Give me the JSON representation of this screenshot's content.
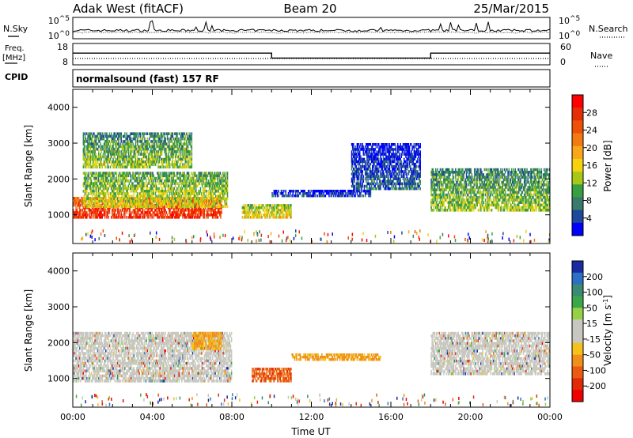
{
  "header": {
    "station": "Adak West (fitACF)",
    "beam": "Beam 20",
    "date": "25/Mar/2015"
  },
  "labels": {
    "nsky": "N.Sky",
    "nsearch": "N.Search",
    "freq_line1": "Freq.",
    "freq_line2": "[MHz]",
    "nave": "Nave",
    "cpid": "CPID",
    "program": "normalsound (fast) 157 RF"
  },
  "noise_axis": {
    "top_label": "10^5",
    "bottom_label": "10^0",
    "right_top": "10^5",
    "right_bottom": "10^0"
  },
  "freq_axis": {
    "left_ticks": [
      "18",
      "8"
    ],
    "right_ticks": [
      "60",
      "0"
    ]
  },
  "chart_data": [
    {
      "type": "line",
      "panel": "noise",
      "series": [
        {
          "name": "N.Sky",
          "style": "solid"
        },
        {
          "name": "N.Search",
          "style": "dotted"
        }
      ]
    },
    {
      "type": "line",
      "panel": "frequency",
      "x": [
        "00:00",
        "10:00",
        "10:00",
        "18:00",
        "18:00",
        "24:00"
      ],
      "series": [
        {
          "name": "Freq.",
          "style": "solid",
          "values": [
            13.5,
            13.5,
            11.2,
            11.2,
            13.5,
            13.5
          ]
        },
        {
          "name": "Nave",
          "style": "dotted",
          "values": [
            6,
            6,
            6,
            6,
            6,
            6
          ]
        }
      ],
      "ylim": [
        8,
        18
      ]
    },
    {
      "type": "heatmap",
      "panel": "power",
      "xlabel": "",
      "ylabel": "Slant Range [km]",
      "xlim_hours": [
        0,
        24
      ],
      "ylim_km": [
        200,
        4500
      ],
      "yticks": [
        1000,
        2000,
        3000,
        4000
      ],
      "colorbar": {
        "label": "Power [dB]",
        "ticks": [
          "4",
          "8",
          "12",
          "16",
          "20",
          "24",
          "28"
        ],
        "colors": [
          "#0000ff",
          "#1d4a9a",
          "#3a7a6c",
          "#38a040",
          "#a8c818",
          "#f6d20e",
          "#f8a61a",
          "#f37a10",
          "#ee5008",
          "#e62e06",
          "#ff0000"
        ]
      },
      "features": [
        {
          "t0": 0.0,
          "t1": 7.5,
          "range_km": [
            900,
            1500
          ],
          "level_db": 26
        },
        {
          "t0": 0.5,
          "t1": 7.8,
          "range_km": [
            1200,
            2200
          ],
          "level_db": 14
        },
        {
          "t0": 0.5,
          "t1": 6.0,
          "range_km": [
            2300,
            3300
          ],
          "level_db": 12
        },
        {
          "t0": 8.5,
          "t1": 11.0,
          "range_km": [
            900,
            1300
          ],
          "level_db": 16
        },
        {
          "t0": 10.0,
          "t1": 15.0,
          "range_km": [
            1500,
            1700
          ],
          "level_db": 6
        },
        {
          "t0": 14.0,
          "t1": 17.5,
          "range_km": [
            1700,
            3000
          ],
          "level_db": 6
        },
        {
          "t0": 18.0,
          "t1": 24.0,
          "range_km": [
            1100,
            2300
          ],
          "level_db": 12
        }
      ]
    },
    {
      "type": "heatmap",
      "panel": "velocity",
      "xlabel": "Time UT",
      "ylabel": "Slant Range [km]",
      "xticks": [
        "00:00",
        "04:00",
        "08:00",
        "12:00",
        "16:00",
        "20:00",
        "00:00"
      ],
      "xlim_hours": [
        0,
        24
      ],
      "ylim_km": [
        200,
        4500
      ],
      "yticks": [
        1000,
        2000,
        3000,
        4000
      ],
      "colorbar": {
        "label": "Velocity [m s-1]",
        "ticks": [
          "200",
          "100",
          "50",
          "15",
          "-15",
          "-50",
          "-100",
          "-200"
        ],
        "colors": [
          "#1a2aa0",
          "#2e6fc6",
          "#3a8a74",
          "#3aa84a",
          "#96d046",
          "#c8c8c0",
          "#c8c8c0",
          "#f4c21a",
          "#f0901a",
          "#ea5a10",
          "#e02a08",
          "#ee0000"
        ]
      },
      "features": [
        {
          "t0": 0.0,
          "t1": 8.0,
          "range_km": [
            900,
            2300
          ],
          "velocity": 0
        },
        {
          "t0": 6.0,
          "t1": 7.5,
          "range_km": [
            1800,
            2300
          ],
          "velocity": -50
        },
        {
          "t0": 9.0,
          "t1": 11.0,
          "range_km": [
            900,
            1300
          ],
          "velocity": -100
        },
        {
          "t0": 11.0,
          "t1": 15.5,
          "range_km": [
            1500,
            1700
          ],
          "velocity": -50
        },
        {
          "t0": 18.0,
          "t1": 24.0,
          "range_km": [
            1100,
            2300
          ],
          "velocity": 0
        }
      ]
    }
  ],
  "colors": {
    "line": "#000000",
    "background": "#ffffff"
  }
}
